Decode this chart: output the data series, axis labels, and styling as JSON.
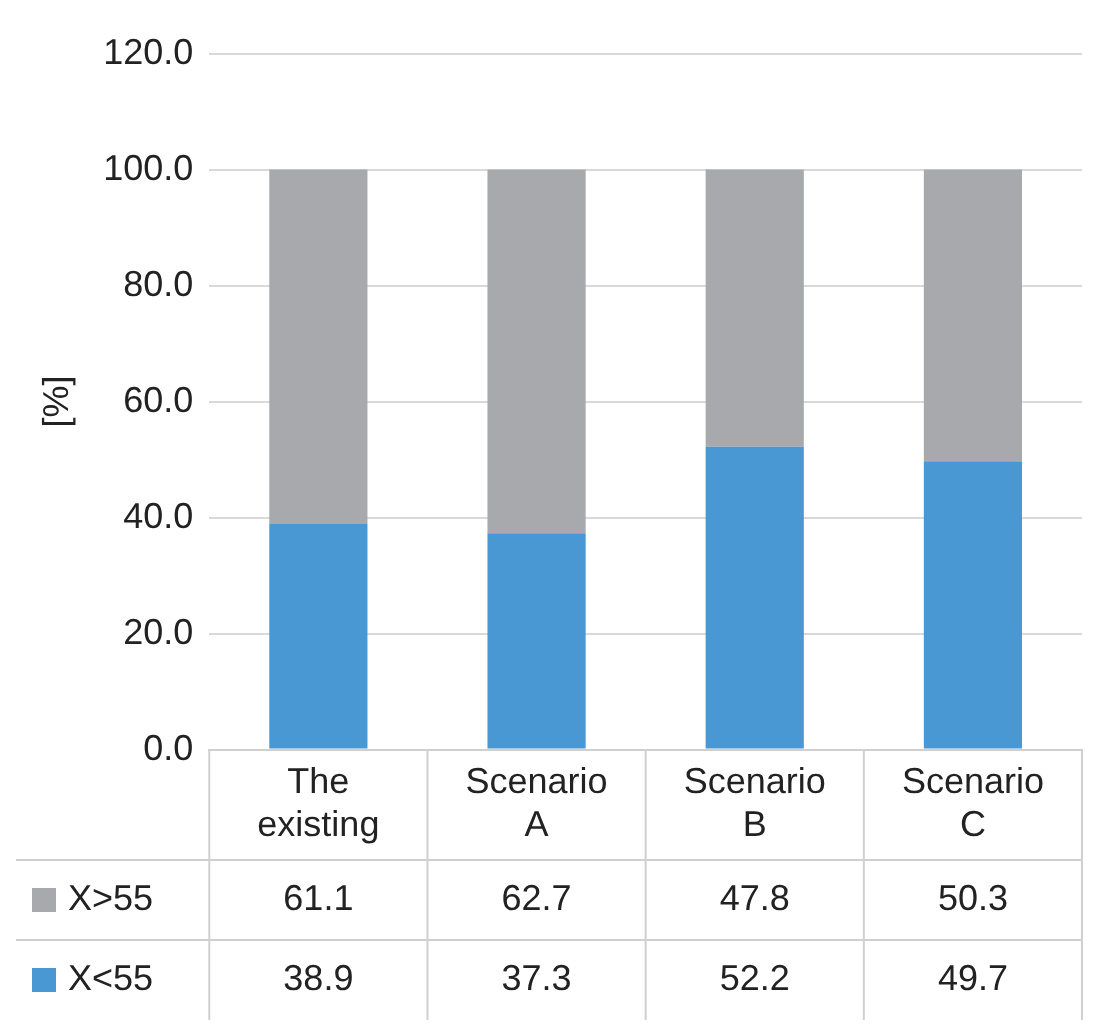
{
  "chart_data": {
    "type": "bar",
    "stacked": true,
    "ylabel": "[%]",
    "categories": [
      "The existing",
      "Scenario A",
      "Scenario B",
      "Scenario C"
    ],
    "series": [
      {
        "name": "X<55",
        "color": "#4a98d3",
        "values": [
          38.9,
          37.3,
          52.2,
          49.7
        ]
      },
      {
        "name": "X>55",
        "color": "#a7a9ac",
        "values": [
          61.1,
          62.7,
          47.8,
          50.3
        ]
      }
    ],
    "ylim": [
      0,
      120
    ],
    "yticks": [
      {
        "value": 0,
        "label": "0.0"
      },
      {
        "value": 20,
        "label": "20.0"
      },
      {
        "value": 40,
        "label": "40.0"
      },
      {
        "value": 60,
        "label": "60.0"
      },
      {
        "value": 80,
        "label": "80.0"
      },
      {
        "value": 100,
        "label": "100.0"
      },
      {
        "value": 120,
        "label": "120.0"
      }
    ],
    "grid": "y",
    "legend": "bottom",
    "data_labels": true
  }
}
